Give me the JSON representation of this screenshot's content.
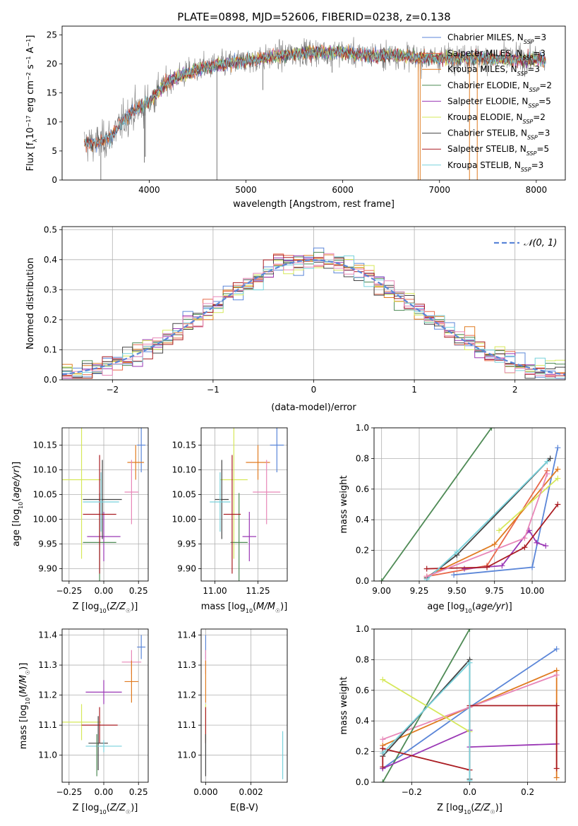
{
  "figure_title": "PLATE=0898, MJD=52606, FIBERID=0238, z=0.138",
  "colors": {
    "Chabrier MILES": "#5b86d8",
    "Salpeter MILES": "#e8684a",
    "Kroupa MILES": "#e07b20",
    "Chabrier ELODIE": "#4e8a55",
    "Salpeter ELODIE": "#9a37b5",
    "Kroupa ELODIE": "#d6e85a",
    "Chabrier STELIB": "#444444",
    "Salpeter STELIB": "#aa1c22",
    "Kroupa STELIB": "#78d2dc",
    "pink": "#e887b8"
  },
  "chart_data": [
    {
      "id": "spectrum",
      "type": "line",
      "xlabel": "wavelength [Angstrom, rest frame]",
      "ylabel": "Flux [f_λ 10^-17 erg cm^-2 s^-1 A^-1]",
      "xlim": [
        3100,
        8300
      ],
      "ylim": [
        0,
        26.5
      ],
      "xticks": [
        4000,
        5000,
        6000,
        7000,
        8000
      ],
      "yticks": [
        0,
        5,
        10,
        15,
        20,
        25
      ],
      "legend_position": "right",
      "legend": [
        "Chabrier MILES, N_SSP=3",
        "Salpeter MILES, N_SSP=3",
        "Kroupa MILES, N_SSP=3",
        "Chabrier ELODIE, N_SSP=2",
        "Salpeter ELODIE, N_SSP=5",
        "Kroupa ELODIE, N_SSP=2",
        "Chabrier STELIB, N_SSP=3",
        "Salpeter STELIB, N_SSP=5",
        "Kroupa STELIB, N_SSP=3"
      ],
      "continuum": {
        "x": [
          3330,
          3500,
          3600,
          3700,
          3800,
          3900,
          4000,
          4100,
          4200,
          4400,
          4600,
          4800,
          5000,
          5200,
          5400,
          5600,
          5800,
          6000,
          6200,
          6400,
          6600,
          6800,
          7000,
          7200,
          7400,
          7600,
          7800,
          8000,
          8100
        ],
        "y": [
          6.2,
          6.5,
          7.5,
          9.5,
          11.5,
          12.5,
          13.5,
          15.5,
          17.0,
          18.5,
          19.5,
          20.0,
          20.5,
          21.0,
          21.5,
          22.0,
          22.0,
          22.0,
          21.5,
          21.5,
          21.5,
          21.0,
          21.0,
          21.0,
          21.0,
          20.8,
          20.8,
          20.8,
          20.5
        ]
      },
      "spikes": [
        {
          "x": 3950,
          "y": 3
        },
        {
          "x": 3960,
          "y": 4
        },
        {
          "x": 4700,
          "y": 0
        },
        {
          "x": 5175,
          "y": 15.5
        },
        {
          "x": 5890,
          "y": 18.5
        },
        {
          "x": 6780,
          "y": 0
        },
        {
          "x": 6800,
          "y": 0
        },
        {
          "x": 7310,
          "y": 0
        },
        {
          "x": 7390,
          "y": 0
        },
        {
          "x": 3500,
          "y": 0
        }
      ]
    },
    {
      "id": "residuals",
      "type": "line",
      "xlabel": "(data-model)/error",
      "ylabel": "Normed distribution",
      "xlim": [
        -2.5,
        2.5
      ],
      "ylim": [
        0,
        0.51
      ],
      "xticks": [
        -2,
        -1,
        0,
        1,
        2
      ],
      "yticks": [
        0.0,
        0.1,
        0.2,
        0.3,
        0.4,
        0.5
      ],
      "legend": [
        "𝒩(0, 1)"
      ],
      "legend_position": "top-right",
      "bin_width": 0.1
    },
    {
      "id": "age_vs_Z",
      "type": "scatter",
      "xlabel": "Z [log10(Z/Z☉)]",
      "ylabel": "age [log10(age/yr)]",
      "xlim": [
        -0.3,
        0.32
      ],
      "ylim": [
        9.875,
        10.185
      ],
      "xticks": [
        -0.25,
        0.0,
        0.25
      ],
      "xticklabels": [
        "−0.25",
        "0.00",
        "0.25"
      ],
      "yticks": [
        9.9,
        9.95,
        10.0,
        10.05,
        10.1,
        10.15
      ],
      "points": [
        {
          "model": "Chabrier MILES",
          "x": 0.27,
          "y": 10.15,
          "xerr": 0.03,
          "yerr": 0.055
        },
        {
          "model": "Kroupa MILES",
          "x": 0.23,
          "y": 10.115,
          "xerr": 0.06,
          "yerr": 0.035
        },
        {
          "model": "pink",
          "x": 0.2,
          "y": 10.055,
          "xerr": 0.05,
          "yerr": 0.065
        },
        {
          "model": "Salpeter ELODIE",
          "x": 0.0,
          "y": 9.965,
          "xerr": 0.12,
          "yerr": 0.05
        },
        {
          "model": "Kroupa ELODIE",
          "x": -0.16,
          "y": 10.08,
          "xerr": 0.14,
          "yerr": 0.16
        },
        {
          "model": "Chabrier ELODIE",
          "x": -0.03,
          "y": 9.953,
          "xerr": 0.12,
          "yerr": 0.1
        },
        {
          "model": "Chabrier STELIB",
          "x": -0.01,
          "y": 10.04,
          "xerr": 0.14,
          "yerr": 0.08
        },
        {
          "model": "Salpeter STELIB",
          "x": -0.03,
          "y": 10.01,
          "xerr": 0.12,
          "yerr": 0.12
        },
        {
          "model": "Kroupa STELIB",
          "x": -0.02,
          "y": 10.035,
          "xerr": 0.13,
          "yerr": 0.06
        }
      ]
    },
    {
      "id": "age_vs_mass",
      "type": "scatter",
      "xlabel": "mass [log10(M/M☉)]",
      "ylabel": "",
      "xlim": [
        10.92,
        11.42
      ],
      "ylim": [
        9.875,
        10.185
      ],
      "xticks": [
        11.0,
        11.25
      ],
      "xticklabels": [
        "11.00",
        "11.25"
      ],
      "yticks": [
        9.9,
        9.95,
        10.0,
        10.05,
        10.1,
        10.15
      ],
      "points": [
        {
          "model": "Chabrier MILES",
          "x": 11.36,
          "y": 10.15,
          "xerr": 0.04,
          "yerr": 0.055
        },
        {
          "model": "Kroupa MILES",
          "x": 11.25,
          "y": 10.115,
          "xerr": 0.07,
          "yerr": 0.035
        },
        {
          "model": "pink",
          "x": 11.3,
          "y": 10.055,
          "xerr": 0.08,
          "yerr": 0.065
        },
        {
          "model": "Salpeter ELODIE",
          "x": 11.2,
          "y": 9.965,
          "xerr": 0.04,
          "yerr": 0.05
        },
        {
          "model": "Kroupa ELODIE",
          "x": 11.11,
          "y": 10.08,
          "xerr": 0.08,
          "yerr": 0.16
        },
        {
          "model": "Chabrier ELODIE",
          "x": 11.14,
          "y": 9.953,
          "xerr": 0.05,
          "yerr": 0.1
        },
        {
          "model": "Chabrier STELIB",
          "x": 11.04,
          "y": 10.04,
          "xerr": 0.04,
          "yerr": 0.08
        },
        {
          "model": "Salpeter STELIB",
          "x": 11.1,
          "y": 10.01,
          "xerr": 0.05,
          "yerr": 0.12
        },
        {
          "model": "Kroupa STELIB",
          "x": 11.03,
          "y": 10.035,
          "xerr": 0.06,
          "yerr": 0.06
        }
      ]
    },
    {
      "id": "weight_vs_age",
      "type": "line",
      "xlabel": "age [log10(age/yr)]",
      "ylabel": "mass weight",
      "xlim": [
        8.95,
        10.22
      ],
      "ylim": [
        0,
        1
      ],
      "xticks": [
        9.0,
        9.25,
        9.5,
        9.75,
        10.0
      ],
      "xticklabels": [
        "9.00",
        "9.25",
        "9.50",
        "9.75",
        "10.00"
      ],
      "yticks": [
        0.0,
        0.2,
        0.4,
        0.6,
        0.8,
        1.0
      ],
      "series": [
        {
          "model": "Chabrier MILES",
          "x": [
            9.48,
            10.0,
            10.17
          ],
          "y": [
            0.04,
            0.09,
            0.87
          ]
        },
        {
          "model": "Salpeter MILES",
          "x": [
            9.3,
            9.7,
            10.1
          ],
          "y": [
            0.03,
            0.1,
            0.72
          ]
        },
        {
          "model": "Kroupa MILES",
          "x": [
            9.3,
            9.75,
            10.17
          ],
          "y": [
            0.03,
            0.24,
            0.73
          ]
        },
        {
          "model": "Chabrier ELODIE",
          "x": [
            9.0,
            9.73
          ],
          "y": [
            0.0,
            1.0
          ]
        },
        {
          "model": "Salpeter ELODIE",
          "x": [
            9.55,
            9.8,
            9.98,
            10.03,
            10.09
          ],
          "y": [
            0.08,
            0.1,
            0.33,
            0.25,
            0.23
          ]
        },
        {
          "model": "Kroupa ELODIE",
          "x": [
            9.78,
            10.17
          ],
          "y": [
            0.33,
            0.67
          ]
        },
        {
          "model": "Chabrier STELIB",
          "x": [
            9.3,
            9.5,
            10.12
          ],
          "y": [
            0.02,
            0.17,
            0.8
          ]
        },
        {
          "model": "Salpeter STELIB",
          "x": [
            9.3,
            9.7,
            9.95,
            10.17
          ],
          "y": [
            0.08,
            0.09,
            0.22,
            0.5
          ]
        },
        {
          "model": "Kroupa STELIB",
          "x": [
            9.3,
            9.5,
            10.1
          ],
          "y": [
            0.01,
            0.19,
            0.78
          ]
        },
        {
          "model": "pink",
          "x": [
            9.3,
            9.95,
            10.1
          ],
          "y": [
            0.03,
            0.28,
            0.7
          ]
        }
      ]
    },
    {
      "id": "mass_vs_Z",
      "type": "scatter",
      "xlabel": "Z [log10(Z/Z☉)]",
      "ylabel": "mass [log10(M/M☉)]",
      "xlim": [
        -0.3,
        0.32
      ],
      "ylim": [
        10.91,
        11.42
      ],
      "xticks": [
        -0.25,
        0.0,
        0.25
      ],
      "xticklabels": [
        "−0.25",
        "0.00",
        "0.25"
      ],
      "yticks": [
        11.0,
        11.1,
        11.2,
        11.3,
        11.4
      ],
      "points": [
        {
          "model": "Chabrier MILES",
          "x": 0.27,
          "y": 11.36,
          "xerr": 0.03,
          "yerr": 0.04
        },
        {
          "model": "pink",
          "x": 0.2,
          "y": 11.31,
          "xerr": 0.07,
          "yerr": 0.04
        },
        {
          "model": "Kroupa MILES",
          "x": 0.2,
          "y": 11.245,
          "xerr": 0.05,
          "yerr": 0.07
        },
        {
          "model": "Salpeter ELODIE",
          "x": 0.0,
          "y": 11.21,
          "xerr": 0.13,
          "yerr": 0.04
        },
        {
          "model": "Kroupa ELODIE",
          "x": -0.16,
          "y": 11.11,
          "xerr": 0.14,
          "yerr": 0.06
        },
        {
          "model": "Salpeter STELIB",
          "x": -0.03,
          "y": 11.1,
          "xerr": 0.13,
          "yerr": 0.06
        },
        {
          "model": "Chabrier STELIB",
          "x": -0.04,
          "y": 11.04,
          "xerr": 0.07,
          "yerr": 0.09
        },
        {
          "model": "Kroupa STELIB",
          "x": 0.0,
          "y": 11.03,
          "xerr": 0.13,
          "yerr": 0.02
        },
        {
          "model": "Chabrier ELODIE",
          "x": -0.05,
          "y": 11.0,
          "xerr": 0.0,
          "yerr": 0.07
        }
      ]
    },
    {
      "id": "mass_vs_ebv",
      "type": "scatter",
      "xlabel": "E(B-V)",
      "ylabel": "",
      "xlim": [
        -0.0002,
        0.0036
      ],
      "ylim": [
        10.91,
        11.42
      ],
      "xticks": [
        0.0,
        0.002
      ],
      "xticklabels": [
        "0.000",
        "0.002"
      ],
      "yticks": [
        11.0,
        11.1,
        11.2,
        11.3,
        11.4
      ],
      "points": [
        {
          "model": "Chabrier MILES",
          "x": 0.0,
          "y": 11.36,
          "xerr": 0,
          "yerr": 0.04
        },
        {
          "model": "pink",
          "x": 0.0,
          "y": 11.31,
          "xerr": 0,
          "yerr": 0.04
        },
        {
          "model": "Kroupa MILES",
          "x": 0.0,
          "y": 11.245,
          "xerr": 0,
          "yerr": 0.07
        },
        {
          "model": "Kroupa ELODIE",
          "x": 0.0,
          "y": 11.11,
          "xerr": 0,
          "yerr": 0.06
        },
        {
          "model": "Salpeter STELIB",
          "x": 0.0,
          "y": 11.1,
          "xerr": 0,
          "yerr": 0.06
        },
        {
          "model": "Chabrier STELIB",
          "x": 0.0,
          "y": 11.0,
          "xerr": 0,
          "yerr": 0.07
        },
        {
          "model": "Kroupa STELIB",
          "x": 0.0034,
          "y": 11.0,
          "xerr": 0,
          "yerr": 0.08
        }
      ]
    },
    {
      "id": "weight_vs_Z",
      "type": "line",
      "xlabel": "Z [log10(Z/Z☉)]",
      "ylabel": "mass weight",
      "xlim": [
        -0.33,
        0.33
      ],
      "ylim": [
        0,
        1
      ],
      "xticks": [
        -0.2,
        0.0,
        0.2
      ],
      "xticklabels": [
        "−0.2",
        "0.0",
        "0.2"
      ],
      "yticks": [
        0.0,
        0.2,
        0.4,
        0.6,
        0.8,
        1.0
      ],
      "series": [
        {
          "model": "Chabrier MILES",
          "x": [
            -0.3,
            0.0,
            0.3
          ],
          "y": [
            0.09,
            0.49,
            0.87
          ]
        },
        {
          "model": "Kroupa MILES",
          "x": [
            -0.3,
            0.0,
            0.3,
            0.3
          ],
          "y": [
            0.24,
            0.49,
            0.73,
            0.03
          ]
        },
        {
          "model": "pink",
          "x": [
            -0.3,
            0.0,
            0.3
          ],
          "y": [
            0.28,
            0.49,
            0.7
          ]
        },
        {
          "model": "Chabrier ELODIE",
          "x": [
            -0.3,
            0.0
          ],
          "y": [
            0.0,
            1.0
          ]
        },
        {
          "model": "Salpeter ELODIE",
          "x": [
            -0.3,
            0.0,
            0.0,
            0.3
          ],
          "y": [
            0.09,
            0.34,
            0.23,
            0.25
          ]
        },
        {
          "model": "Kroupa ELODIE",
          "x": [
            -0.3,
            0.0
          ],
          "y": [
            0.67,
            0.33
          ]
        },
        {
          "model": "Chabrier STELIB",
          "x": [
            -0.3,
            0.0,
            0.0
          ],
          "y": [
            0.17,
            0.8,
            0.02
          ]
        },
        {
          "model": "Salpeter STELIB",
          "x": [
            -0.3,
            -0.3,
            0.0,
            0.0,
            0.3,
            0.3
          ],
          "y": [
            0.1,
            0.22,
            0.08,
            0.5,
            0.5,
            0.09
          ]
        },
        {
          "model": "Kroupa STELIB",
          "x": [
            -0.3,
            0.0,
            0.0
          ],
          "y": [
            0.19,
            0.78,
            0.01
          ]
        }
      ]
    }
  ]
}
